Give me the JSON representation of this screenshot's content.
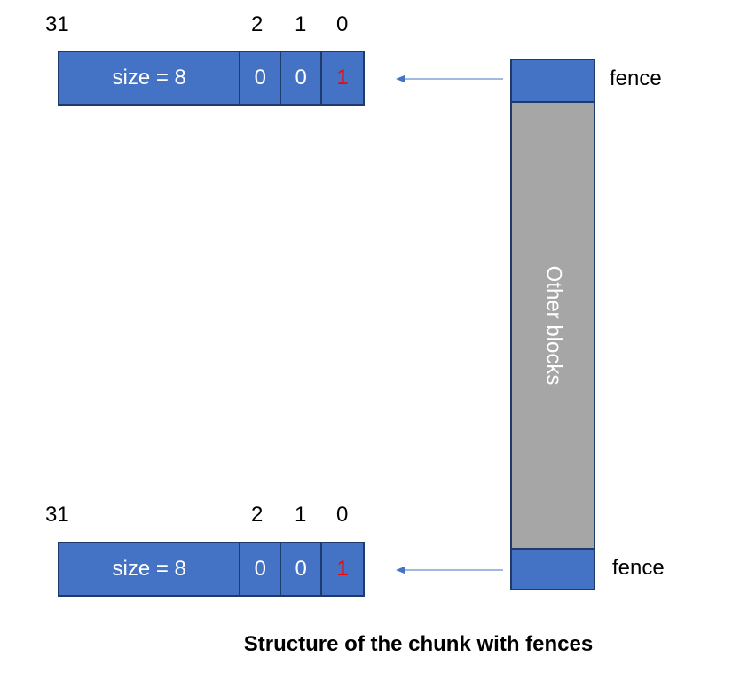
{
  "colors": {
    "block_blue": "#4472c4",
    "block_border": "#1f3b6b",
    "other_blocks_gray": "#a6a6a6",
    "set_bit_red": "#ff0000",
    "arrow_blue": "#4472c4"
  },
  "header_top": {
    "bit31": "31",
    "bit2": "2",
    "bit1": "1",
    "bit0": "0",
    "size_label": "size = 8",
    "bit2_value": "0",
    "bit1_value": "0",
    "bit0_value": "1"
  },
  "header_bottom": {
    "bit31": "31",
    "bit2": "2",
    "bit1": "1",
    "bit0": "0",
    "size_label": "size = 8",
    "bit2_value": "0",
    "bit1_value": "0",
    "bit0_value": "1"
  },
  "memory": {
    "top_fence_label": "fence",
    "other_blocks_label": "Other blocks",
    "bottom_fence_label": "fence"
  },
  "caption": "Structure of the chunk with fences"
}
